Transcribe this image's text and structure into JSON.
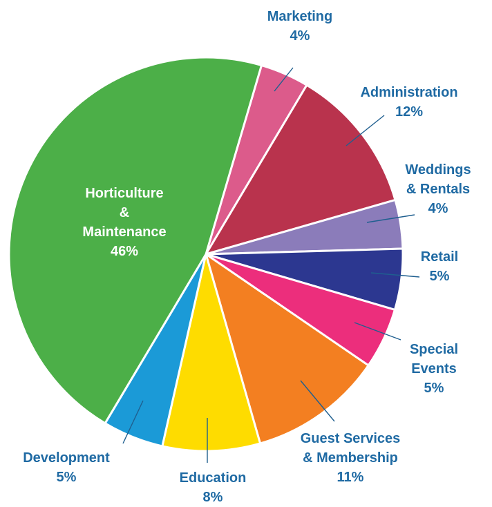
{
  "chart_data": {
    "type": "pie",
    "slices": [
      {
        "key": "marketing",
        "label_lines": [
          "Marketing",
          "4%"
        ],
        "value": 4,
        "color": "#dc5b8b"
      },
      {
        "key": "administration",
        "label_lines": [
          "Administration",
          "12%"
        ],
        "value": 12,
        "color": "#b9334d"
      },
      {
        "key": "weddings",
        "label_lines": [
          "Weddings",
          "& Rentals",
          "4%"
        ],
        "value": 4,
        "color": "#8b7cba"
      },
      {
        "key": "retail",
        "label_lines": [
          "Retail",
          "5%"
        ],
        "value": 5,
        "color": "#2c3790"
      },
      {
        "key": "special-events",
        "label_lines": [
          "Special",
          "Events",
          "5%"
        ],
        "value": 5,
        "color": "#ec2e7c"
      },
      {
        "key": "guest-services",
        "label_lines": [
          "Guest Services",
          "& Membership",
          "11%"
        ],
        "value": 11,
        "color": "#f37f21"
      },
      {
        "key": "education",
        "label_lines": [
          "Education",
          "8%"
        ],
        "value": 8,
        "color": "#fedc00"
      },
      {
        "key": "development",
        "label_lines": [
          "Development",
          "5%"
        ],
        "value": 5,
        "color": "#1b9ad7"
      },
      {
        "key": "horticulture",
        "label_lines": [
          "Horticulture",
          "&",
          "Maintenance",
          "46%"
        ],
        "value": 46,
        "color": "#4caf48"
      }
    ],
    "label_color": "#1f6aa3"
  }
}
